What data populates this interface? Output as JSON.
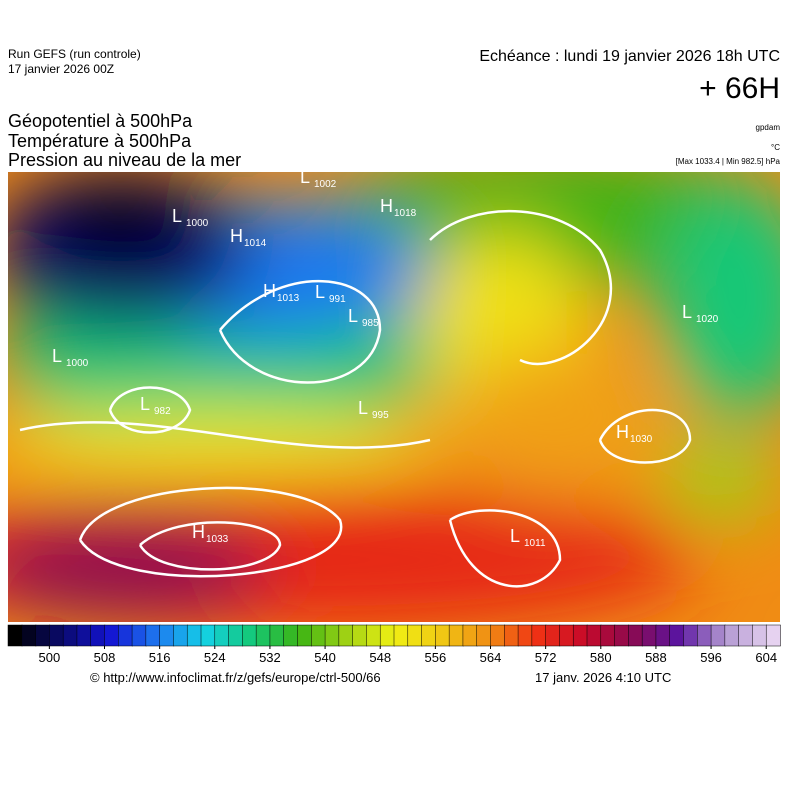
{
  "header": {
    "run": "Run GEFS (run controle)",
    "run_date": "17 janvier 2026 00Z",
    "echeance": "Echéance : lundi 19 janvier 2026 18h UTC",
    "lead": "+ 66H",
    "fields": [
      "Géopotentiel à 500hPa",
      "Température à 500hPa",
      "Pression au niveau de la mer"
    ],
    "units": [
      "gpdam",
      "°C",
      "[Max 1033.4 | Min 982.5] hPa"
    ]
  },
  "centers": [
    {
      "kind": "L",
      "value": 1000
    },
    {
      "kind": "H",
      "value": 1014
    },
    {
      "kind": "L",
      "value": 1002
    },
    {
      "kind": "H",
      "value": 1018
    },
    {
      "kind": "H",
      "value": 1013
    },
    {
      "kind": "L",
      "value": 991
    },
    {
      "kind": "L",
      "value": 985
    },
    {
      "kind": "L",
      "value": 1000
    },
    {
      "kind": "L",
      "value": 982
    },
    {
      "kind": "L",
      "value": 995
    },
    {
      "kind": "H",
      "value": 1033
    },
    {
      "kind": "L",
      "value": 1020
    },
    {
      "kind": "H",
      "value": 1030
    },
    {
      "kind": "L",
      "value": 1011
    }
  ],
  "colorbar": {
    "range": [
      494,
      606
    ],
    "ticks": [
      500,
      508,
      516,
      524,
      532,
      540,
      548,
      556,
      564,
      572,
      580,
      588,
      596,
      604
    ],
    "colors": [
      "#000000",
      "#0a0a6e",
      "#1414d2",
      "#1e78f0",
      "#14d2e6",
      "#14c878",
      "#3cb414",
      "#a0d214",
      "#f0f014",
      "#f0c814",
      "#f08c14",
      "#f03214",
      "#c80a28",
      "#8c0a50",
      "#5a14a0",
      "#b49ad2",
      "#e6d2f0"
    ]
  },
  "footer": {
    "url": "© http://www.infoclimat.fr/z/gefs/europe/ctrl-500/66",
    "made": "17 janv. 2026  4:10 UTC"
  }
}
